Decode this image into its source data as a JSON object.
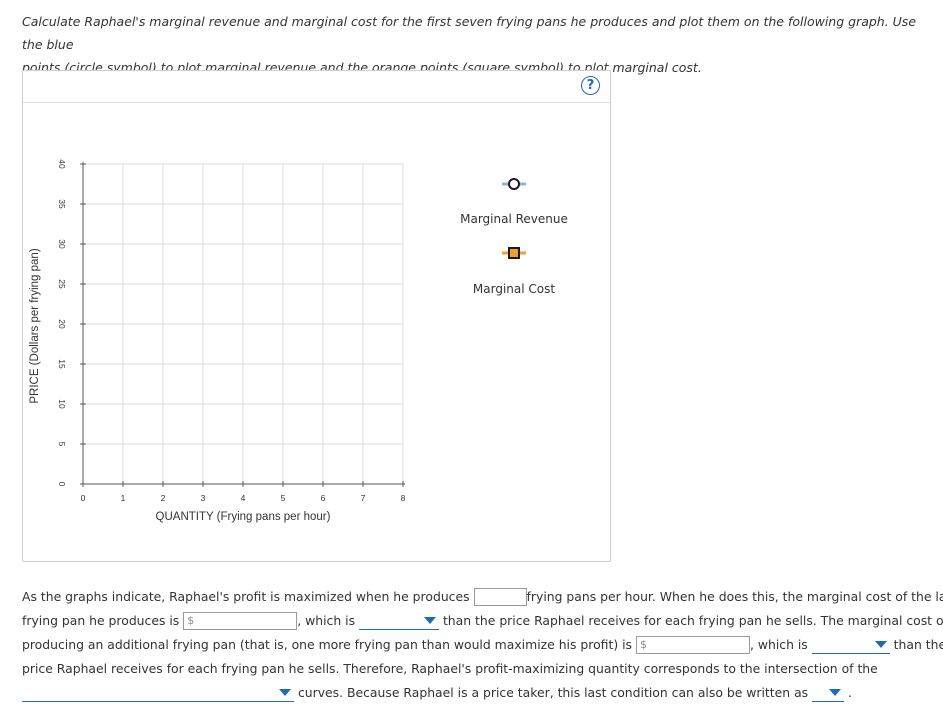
{
  "instructions": {
    "line1": "Calculate Raphael's marginal revenue and marginal cost for the first seven frying pans he produces and plot them on the following graph. Use the blue",
    "line2": "points (circle symbol) to plot marginal revenue and the orange points (square symbol) to plot marginal cost."
  },
  "help": {
    "label": "?"
  },
  "chart_data": {
    "type": "scatter",
    "xlabel": "QUANTITY (Frying pans per hour)",
    "ylabel": "PRICE (Dollars per frying pan)",
    "xlim": [
      0,
      8
    ],
    "ylim": [
      0,
      40
    ],
    "x_ticks": [
      0,
      1,
      2,
      3,
      4,
      5,
      6,
      7,
      8
    ],
    "y_ticks": [
      0,
      5,
      10,
      15,
      20,
      25,
      30,
      35,
      40
    ],
    "grid": true,
    "legend_position": "right",
    "series": [
      {
        "name": "Marginal Revenue",
        "marker": "circle",
        "color": "#6f9fcf",
        "values": []
      },
      {
        "name": "Marginal Cost",
        "marker": "square",
        "color": "#f0a030",
        "values": []
      }
    ]
  },
  "colors": {
    "accent": "#1c6bb5",
    "grid": "#dcdcdc",
    "mr_line": "#8fb3d9",
    "mc_fill": "#f0a030"
  },
  "questions": {
    "t1": "As the graphs indicate, Raphael's profit is maximized when he produces",
    "t2": "frying pans per hour. When he does this, the marginal cost of the last",
    "t3": "frying pan he produces is",
    "t4": ", which is",
    "t5": "than the price Raphael receives for each frying pan he sells. The marginal cost of",
    "t6": "producing an additional frying pan (that is, one more frying pan than would maximize his profit) is",
    "t7": ", which is",
    "t8": "than the",
    "t9": "price Raphael receives for each frying pan he sells. Therefore, Raphael's profit-maximizing quantity corresponds to the intersection of the",
    "t10": "curves. Because Raphael is a price taker, this last condition can also be written as",
    "t11": ".",
    "quantity_input_value": "",
    "dollar_prefix": "$",
    "mc_last_value": "",
    "mc_additional_value": "",
    "dropdown1_selected": "",
    "dropdown2_selected": "",
    "dropdown3_selected": "",
    "dropdown4_selected": ""
  }
}
